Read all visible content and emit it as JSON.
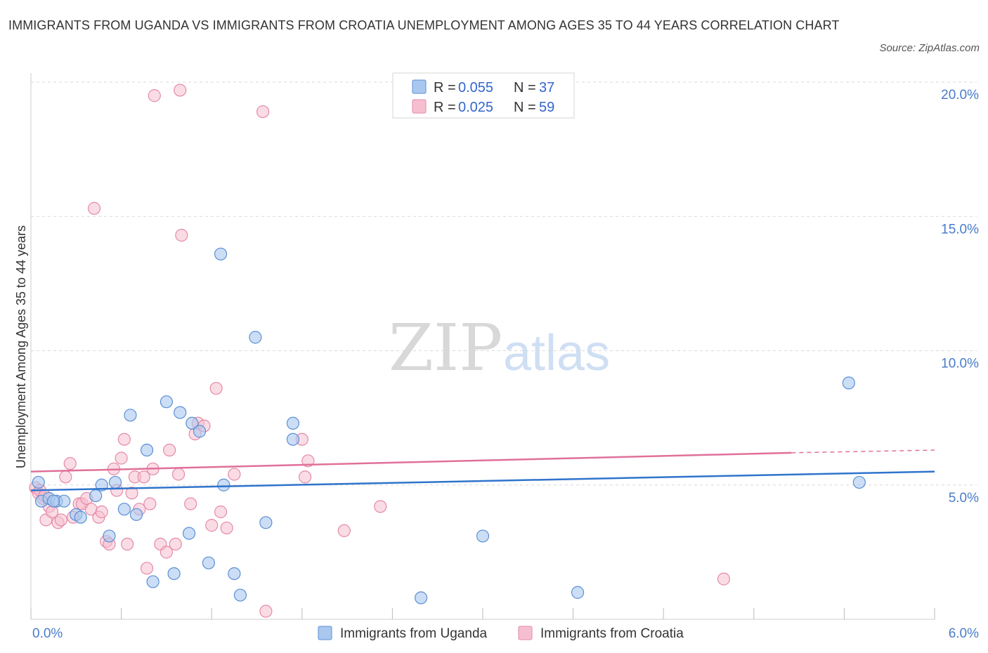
{
  "title": "IMMIGRANTS FROM UGANDA VS IMMIGRANTS FROM CROATIA UNEMPLOYMENT AMONG AGES 35 TO 44 YEARS CORRELATION CHART",
  "source": "Source: ZipAtlas.com",
  "watermark": {
    "zip": "ZIP",
    "atlas": "atlas"
  },
  "legend": {
    "uganda": {
      "r_label": "R = ",
      "r_value": "0.055",
      "n_label": "N = ",
      "n_value": "37"
    },
    "croatia": {
      "r_label": "R = ",
      "r_value": "0.025",
      "n_label": "N = ",
      "n_value": "59"
    }
  },
  "colors": {
    "uganda_fill": "#aac8ef",
    "uganda_stroke": "#5a8fd6",
    "uganda_line": "#2f74cc",
    "croatia_fill": "#f6bfd0",
    "croatia_stroke": "#e58aa8",
    "croatia_line": "#e0709a",
    "grid": "#d9d9d9",
    "tick_text": "#4a7cc9"
  },
  "chart_data": {
    "type": "scatter",
    "title": "IMMIGRANTS FROM UGANDA VS IMMIGRANTS FROM CROATIA UNEMPLOYMENT AMONG AGES 35 TO 44 YEARS CORRELATION CHART",
    "xlabel": "",
    "ylabel": "Unemployment Among Ages 35 to 44 years",
    "xlim": [
      0,
      6
    ],
    "ylim": [
      0,
      20
    ],
    "x_tick_labels": [
      "0.0%",
      "6.0%"
    ],
    "y_ticks": [
      5,
      10,
      15,
      20
    ],
    "y_tick_labels": [
      "5.0%",
      "10.0%",
      "15.0%",
      "20.0%"
    ],
    "grid": true,
    "legend_position": "top-center",
    "series": [
      {
        "name": "Immigrants from Uganda",
        "R": 0.055,
        "N": 37,
        "trend": {
          "x0": 0.0,
          "y0": 4.8,
          "x1": 6.0,
          "y1": 5.5
        },
        "points": [
          [
            0.05,
            5.1
          ],
          [
            0.07,
            4.4
          ],
          [
            0.12,
            4.5
          ],
          [
            0.17,
            4.4
          ],
          [
            0.22,
            4.4
          ],
          [
            0.3,
            3.9
          ],
          [
            0.33,
            3.8
          ],
          [
            0.43,
            4.6
          ],
          [
            0.47,
            5.0
          ],
          [
            0.52,
            3.1
          ],
          [
            0.56,
            5.1
          ],
          [
            0.62,
            4.1
          ],
          [
            0.66,
            7.6
          ],
          [
            0.7,
            3.9
          ],
          [
            0.77,
            6.3
          ],
          [
            0.81,
            1.4
          ],
          [
            0.9,
            8.1
          ],
          [
            0.95,
            1.7
          ],
          [
            0.99,
            7.7
          ],
          [
            1.05,
            3.2
          ],
          [
            1.07,
            7.3
          ],
          [
            1.12,
            7.0
          ],
          [
            1.18,
            2.1
          ],
          [
            1.26,
            13.6
          ],
          [
            1.28,
            5.0
          ],
          [
            1.35,
            1.7
          ],
          [
            1.39,
            0.9
          ],
          [
            1.49,
            10.5
          ],
          [
            1.56,
            3.6
          ],
          [
            1.74,
            6.7
          ],
          [
            1.74,
            7.3
          ],
          [
            2.59,
            0.8
          ],
          [
            3.0,
            3.1
          ],
          [
            3.63,
            1.0
          ],
          [
            5.43,
            8.8
          ],
          [
            5.5,
            5.1
          ],
          [
            0.15,
            4.4
          ]
        ]
      },
      {
        "name": "Immigrants from Croatia",
        "R": 0.025,
        "N": 59,
        "trend": {
          "x0": 0.0,
          "y0": 5.5,
          "x1": 5.05,
          "y1": 6.2,
          "dash_x1": 6.0,
          "dash_y1": 6.3
        },
        "points": [
          [
            0.03,
            4.9
          ],
          [
            0.05,
            4.7
          ],
          [
            0.08,
            4.5
          ],
          [
            0.1,
            3.7
          ],
          [
            0.12,
            4.2
          ],
          [
            0.14,
            4.0
          ],
          [
            0.18,
            3.6
          ],
          [
            0.2,
            3.7
          ],
          [
            0.23,
            5.3
          ],
          [
            0.26,
            5.8
          ],
          [
            0.28,
            3.8
          ],
          [
            0.32,
            4.3
          ],
          [
            0.34,
            4.3
          ],
          [
            0.37,
            4.5
          ],
          [
            0.4,
            4.1
          ],
          [
            0.42,
            15.3
          ],
          [
            0.45,
            3.8
          ],
          [
            0.47,
            4.0
          ],
          [
            0.5,
            2.9
          ],
          [
            0.52,
            2.8
          ],
          [
            0.55,
            5.6
          ],
          [
            0.57,
            4.8
          ],
          [
            0.6,
            6.0
          ],
          [
            0.62,
            6.7
          ],
          [
            0.64,
            2.8
          ],
          [
            0.67,
            4.7
          ],
          [
            0.69,
            5.3
          ],
          [
            0.72,
            4.1
          ],
          [
            0.75,
            5.3
          ],
          [
            0.77,
            1.9
          ],
          [
            0.79,
            4.3
          ],
          [
            0.81,
            5.6
          ],
          [
            0.82,
            19.5
          ],
          [
            0.86,
            2.8
          ],
          [
            0.9,
            2.5
          ],
          [
            0.92,
            6.3
          ],
          [
            0.96,
            2.8
          ],
          [
            0.99,
            19.7
          ],
          [
            1.0,
            14.3
          ],
          [
            1.06,
            4.3
          ],
          [
            1.11,
            7.3
          ],
          [
            1.15,
            7.2
          ],
          [
            1.2,
            3.5
          ],
          [
            1.23,
            8.6
          ],
          [
            1.26,
            4.0
          ],
          [
            1.3,
            3.4
          ],
          [
            1.35,
            5.4
          ],
          [
            1.54,
            18.9
          ],
          [
            1.56,
            0.3
          ],
          [
            1.8,
            6.7
          ],
          [
            1.82,
            5.3
          ],
          [
            1.84,
            5.9
          ],
          [
            2.08,
            3.3
          ],
          [
            2.32,
            4.2
          ],
          [
            4.6,
            1.5
          ],
          [
            0.06,
            4.8
          ],
          [
            0.09,
            4.6
          ],
          [
            1.09,
            6.9
          ],
          [
            0.98,
            5.4
          ]
        ]
      }
    ],
    "bottom_legend": [
      "Immigrants from Uganda",
      "Immigrants from Croatia"
    ]
  }
}
